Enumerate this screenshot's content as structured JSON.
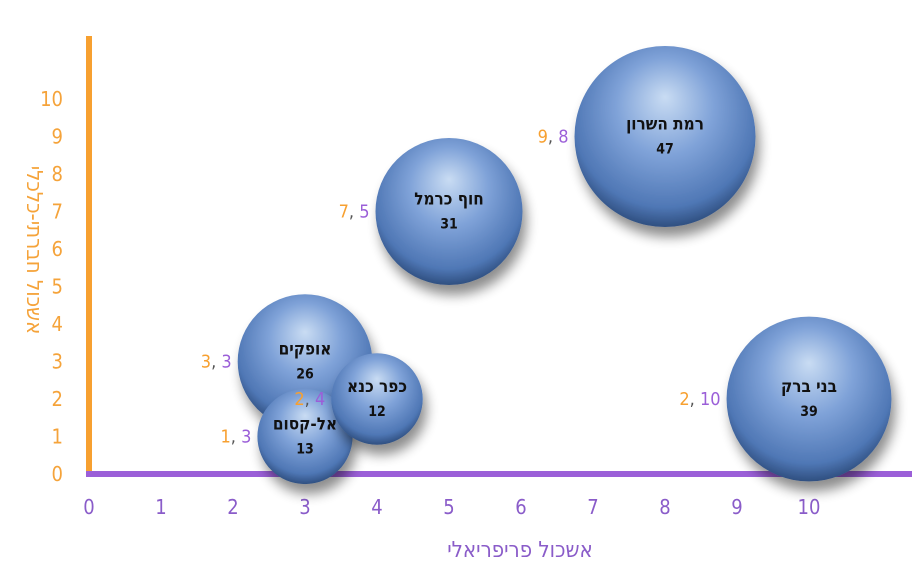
{
  "chart_data": {
    "type": "scatter",
    "variant": "bubble",
    "xlabel": "אשכול פריפריאלי",
    "ylabel": "אשכול חברתי-כלכלי",
    "xlim": [
      0,
      11.3
    ],
    "ylim": [
      0,
      11.8
    ],
    "x_ticks": [
      0,
      1,
      2,
      3,
      4,
      5,
      6,
      7,
      8,
      9,
      10
    ],
    "y_ticks": [
      0,
      1,
      2,
      3,
      4,
      5,
      6,
      7,
      8,
      9,
      10
    ],
    "grid": false,
    "legend": "none",
    "colors": {
      "x_axis": "#9b5fd8",
      "y_axis": "#f7a030",
      "bubble": "#5b84c4"
    },
    "points": [
      {
        "name": "רמת השרון",
        "x": 8,
        "y": 9,
        "size": 47,
        "coord_x": "8",
        "coord_y": "9"
      },
      {
        "name": "חוף כרמל",
        "x": 5,
        "y": 7,
        "size": 31,
        "coord_x": "5",
        "coord_y": "7"
      },
      {
        "name": "אופקים",
        "x": 3,
        "y": 3,
        "size": 26,
        "coord_x": "3",
        "coord_y": "3"
      },
      {
        "name": "כפר כנא",
        "x": 4,
        "y": 2,
        "size": 12,
        "coord_x": "4",
        "coord_y": "2"
      },
      {
        "name": "אל-קסום",
        "x": 3,
        "y": 1,
        "size": 13,
        "coord_x": "3",
        "coord_y": "1"
      },
      {
        "name": "בני ברק",
        "x": 10,
        "y": 2,
        "size": 39,
        "coord_x": "10",
        "coord_y": "2"
      }
    ]
  }
}
